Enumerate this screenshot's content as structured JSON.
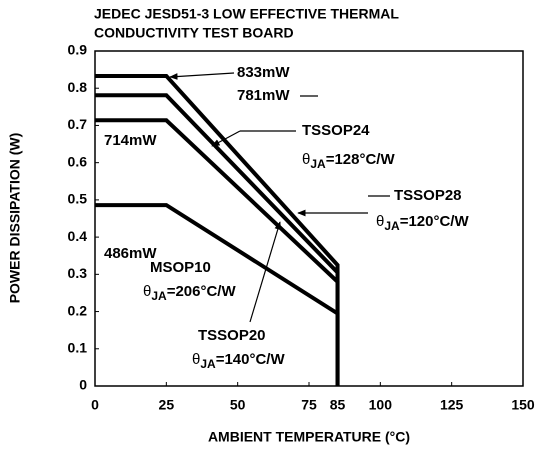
{
  "chart_data": {
    "type": "line",
    "title_lines": [
      "JEDEC JESD51-3 LOW EFFECTIVE THERMAL",
      "CONDUCTIVITY TEST BOARD"
    ],
    "xlabel": "AMBIENT TEMPERATURE (°C)",
    "ylabel": "POWER DISSIPATION (W)",
    "x": [
      0,
      25,
      85,
      85
    ],
    "series": [
      {
        "color": "#000000",
        "values": [
          0.833,
          0.833,
          0.325,
          0
        ]
      },
      {
        "color": "#000000",
        "values": [
          0.781,
          0.781,
          0.305,
          0
        ]
      },
      {
        "color": "#000000",
        "values": [
          0.714,
          0.714,
          0.28,
          0
        ]
      },
      {
        "color": "#000000",
        "values": [
          0.486,
          0.486,
          0.195,
          0
        ]
      }
    ],
    "xlim": [
      0,
      150
    ],
    "xticks": [
      0,
      25,
      50,
      75,
      85,
      100,
      125,
      150
    ],
    "ylim": [
      0,
      0.9
    ],
    "yticks": [
      0,
      0.1,
      0.2,
      0.3,
      0.4,
      0.5,
      0.6,
      0.7,
      0.8,
      0.9
    ],
    "power_labels": [
      "833mW",
      "781mW",
      "714mW",
      "486mW"
    ],
    "packages": [
      {
        "name": "TSSOP24",
        "symbol": "θ",
        "sub": "JA",
        "rest": "=128°C/W"
      },
      {
        "name": "TSSOP28",
        "symbol": "θ",
        "sub": "JA",
        "rest": "=120°C/W"
      },
      {
        "name": "MSOP10",
        "symbol": "θ",
        "sub": "JA",
        "rest": "=206°C/W"
      },
      {
        "name": "TSSOP20",
        "symbol": "θ",
        "sub": "JA",
        "rest": "=140°C/W"
      }
    ]
  }
}
